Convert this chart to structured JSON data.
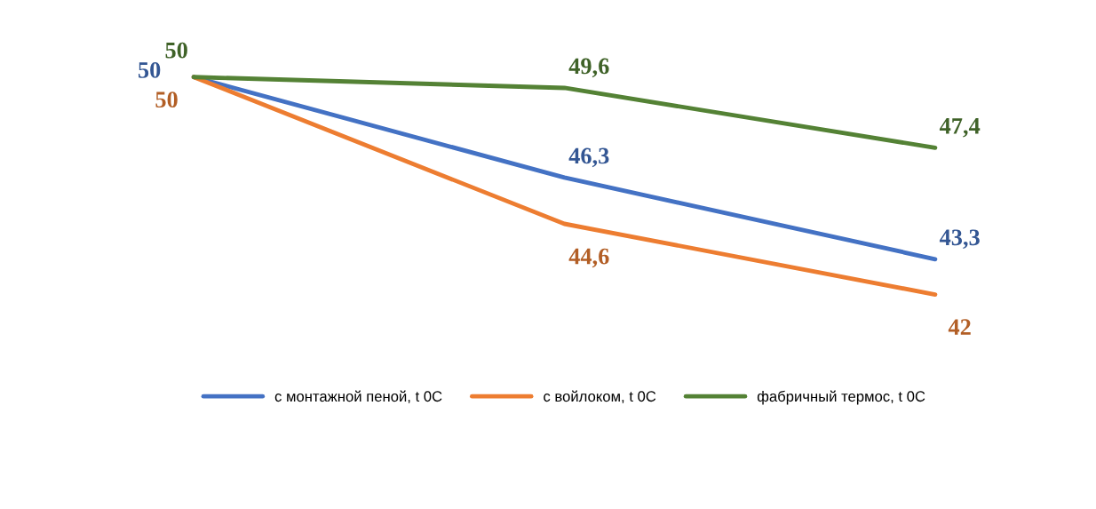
{
  "chart_data": {
    "type": "line",
    "categories": [
      null,
      null,
      null
    ],
    "series": [
      {
        "name": "с монтажной пеной, t 0C",
        "color": "#4472c4",
        "values": [
          50,
          46.3,
          43.3
        ],
        "value_labels": [
          "50",
          "46,3",
          "43,3"
        ]
      },
      {
        "name": "с войлоком, t 0C",
        "color": "#ed7d31",
        "values": [
          50,
          44.6,
          42
        ],
        "value_labels": [
          "50",
          "44,6",
          "42"
        ]
      },
      {
        "name": "фабричный термос, t 0C",
        "color": "#548235",
        "values": [
          50,
          49.6,
          47.4
        ],
        "value_labels": [
          "50",
          "49,6",
          "47,4"
        ]
      }
    ],
    "legend": "bottom",
    "marker": "none",
    "line_style": "solid"
  }
}
